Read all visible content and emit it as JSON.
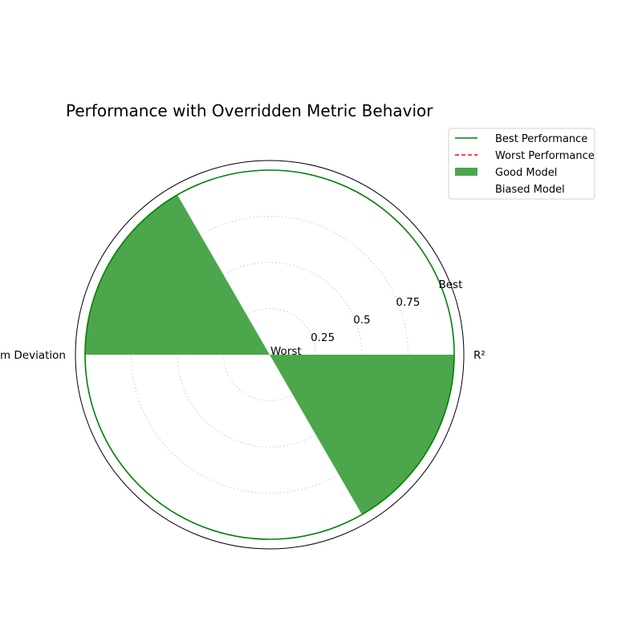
{
  "chart_data": {
    "type": "radar",
    "title": "Performance with Overridden Metric Behavior",
    "categories": [
      "R²",
      "Custom Deviation"
    ],
    "radial_min_label": "Worst",
    "radial_max_label": "Best",
    "radial_ticks": [
      0.25,
      0.5,
      0.75
    ],
    "rlim": [
      0,
      1
    ],
    "grid": true,
    "legend_position": "top-right",
    "series": [
      {
        "name": "Best Performance",
        "values": [
          1,
          1
        ],
        "style": "line",
        "color": "#008000"
      },
      {
        "name": "Worst Performance",
        "values": [
          0,
          0
        ],
        "style": "dashed",
        "color": "#ff0000"
      },
      {
        "name": "Good Model",
        "values": [
          1,
          1
        ],
        "style": "fill",
        "color": "#4ca64c"
      },
      {
        "name": "Biased Model",
        "values": [
          0,
          0
        ],
        "style": "fill",
        "color": "#ffffff"
      }
    ]
  }
}
